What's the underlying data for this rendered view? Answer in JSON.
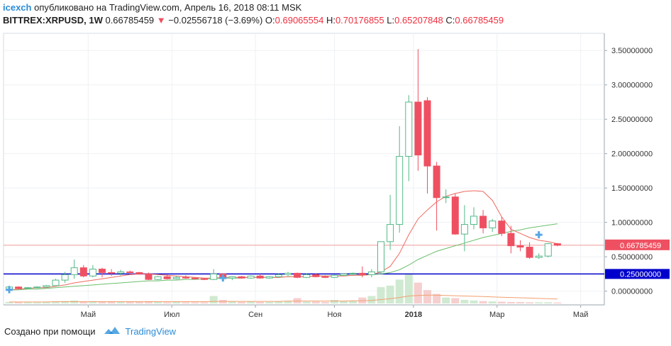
{
  "header": {
    "user": "icexch",
    "published": "опубликовано на TradingView.com, Апрель 16, 2018 08:11 MSK",
    "symbol": "BITTREX:XRPUSD, 1W",
    "last": "0.66785459",
    "arrow": "▼",
    "change": "−0.02556718 (−3.69%)",
    "o_label": "O:",
    "o_value": "0.69065554",
    "h_label": "H:",
    "h_value": "0.70176855",
    "l_label": "L:",
    "l_value": "0.65207848",
    "c_label": "C:",
    "c_value": "0.66785459"
  },
  "footer": {
    "created_with": "Создано при помощи",
    "brand": "TradingView",
    "logo_icon": "tradingview-cloud-icon"
  },
  "colors": {
    "up": "#ffffff",
    "up_border": "#53b987",
    "down": "#ef5061",
    "ma_fast": "#ef6a5f",
    "ma_slow": "#6cbf6c",
    "volume_up": "#c8e6c9",
    "volume_down": "#f4c7c7",
    "volume_ma": "#f0a070",
    "support_line": "#0000cc",
    "price_line": "#ef9a9a",
    "grid": "#eef1f4",
    "marker": "#56a7e3"
  },
  "chart_data": {
    "type": "candlestick",
    "y_axis_ticks": [
      "3.50000000",
      "3.00000000",
      "2.50000000",
      "2.00000000",
      "1.50000000",
      "1.00000000",
      "0.50000000",
      "0.00000000"
    ],
    "y_tick_values": [
      3.5,
      3.0,
      2.5,
      2.0,
      1.5,
      1.0,
      0.5,
      0.0
    ],
    "ylim": [
      -0.2,
      3.75
    ],
    "x_axis_ticks": [
      "Май",
      "Июл",
      "Сен",
      "Ноя",
      "2018",
      "Мар",
      "Май"
    ],
    "x_tick_weeks": [
      8.5,
      17.5,
      26.5,
      35,
      43.5,
      52.5,
      61.5
    ],
    "current_price_label": "0.66785459",
    "current_price": 0.66785459,
    "support_label": "0.25000000",
    "support_price": 0.25,
    "candles": [
      {
        "o": 0.02,
        "h": 0.08,
        "l": 0.005,
        "c": 0.06
      },
      {
        "o": 0.06,
        "h": 0.07,
        "l": 0.03,
        "c": 0.04
      },
      {
        "o": 0.04,
        "h": 0.06,
        "l": 0.03,
        "c": 0.05
      },
      {
        "o": 0.05,
        "h": 0.07,
        "l": 0.04,
        "c": 0.06
      },
      {
        "o": 0.06,
        "h": 0.09,
        "l": 0.05,
        "c": 0.08
      },
      {
        "o": 0.08,
        "h": 0.18,
        "l": 0.07,
        "c": 0.16
      },
      {
        "o": 0.16,
        "h": 0.28,
        "l": 0.12,
        "c": 0.24
      },
      {
        "o": 0.24,
        "h": 0.46,
        "l": 0.18,
        "c": 0.34
      },
      {
        "o": 0.34,
        "h": 0.38,
        "l": 0.2,
        "c": 0.22
      },
      {
        "o": 0.22,
        "h": 0.38,
        "l": 0.2,
        "c": 0.32
      },
      {
        "o": 0.32,
        "h": 0.34,
        "l": 0.2,
        "c": 0.27
      },
      {
        "o": 0.27,
        "h": 0.32,
        "l": 0.22,
        "c": 0.26
      },
      {
        "o": 0.26,
        "h": 0.31,
        "l": 0.23,
        "c": 0.28
      },
      {
        "o": 0.28,
        "h": 0.3,
        "l": 0.24,
        "c": 0.27
      },
      {
        "o": 0.27,
        "h": 0.28,
        "l": 0.24,
        "c": 0.25
      },
      {
        "o": 0.25,
        "h": 0.27,
        "l": 0.16,
        "c": 0.17
      },
      {
        "o": 0.17,
        "h": 0.22,
        "l": 0.16,
        "c": 0.21
      },
      {
        "o": 0.21,
        "h": 0.24,
        "l": 0.17,
        "c": 0.18
      },
      {
        "o": 0.18,
        "h": 0.22,
        "l": 0.17,
        "c": 0.2
      },
      {
        "o": 0.2,
        "h": 0.23,
        "l": 0.18,
        "c": 0.19
      },
      {
        "o": 0.19,
        "h": 0.2,
        "l": 0.17,
        "c": 0.18
      },
      {
        "o": 0.18,
        "h": 0.19,
        "l": 0.16,
        "c": 0.17
      },
      {
        "o": 0.17,
        "h": 0.32,
        "l": 0.16,
        "c": 0.25
      },
      {
        "o": 0.25,
        "h": 0.26,
        "l": 0.17,
        "c": 0.19
      },
      {
        "o": 0.19,
        "h": 0.22,
        "l": 0.16,
        "c": 0.21
      },
      {
        "o": 0.21,
        "h": 0.22,
        "l": 0.18,
        "c": 0.19
      },
      {
        "o": 0.19,
        "h": 0.23,
        "l": 0.18,
        "c": 0.22
      },
      {
        "o": 0.22,
        "h": 0.25,
        "l": 0.18,
        "c": 0.19
      },
      {
        "o": 0.19,
        "h": 0.22,
        "l": 0.18,
        "c": 0.21
      },
      {
        "o": 0.21,
        "h": 0.26,
        "l": 0.2,
        "c": 0.24
      },
      {
        "o": 0.24,
        "h": 0.28,
        "l": 0.22,
        "c": 0.26
      },
      {
        "o": 0.26,
        "h": 0.27,
        "l": 0.19,
        "c": 0.2
      },
      {
        "o": 0.2,
        "h": 0.26,
        "l": 0.19,
        "c": 0.24
      },
      {
        "o": 0.24,
        "h": 0.26,
        "l": 0.2,
        "c": 0.21
      },
      {
        "o": 0.21,
        "h": 0.23,
        "l": 0.19,
        "c": 0.2
      },
      {
        "o": 0.2,
        "h": 0.24,
        "l": 0.19,
        "c": 0.23
      },
      {
        "o": 0.23,
        "h": 0.26,
        "l": 0.22,
        "c": 0.25
      },
      {
        "o": 0.25,
        "h": 0.27,
        "l": 0.24,
        "c": 0.26
      },
      {
        "o": 0.26,
        "h": 0.36,
        "l": 0.2,
        "c": 0.24
      },
      {
        "o": 0.24,
        "h": 0.32,
        "l": 0.2,
        "c": 0.28
      },
      {
        "o": 0.28,
        "h": 0.72,
        "l": 0.26,
        "c": 0.72
      },
      {
        "o": 0.72,
        "h": 1.4,
        "l": 0.6,
        "c": 0.97
      },
      {
        "o": 0.97,
        "h": 2.4,
        "l": 0.85,
        "c": 1.96
      },
      {
        "o": 1.96,
        "h": 2.85,
        "l": 1.6,
        "c": 2.75
      },
      {
        "o": 2.75,
        "h": 3.52,
        "l": 1.75,
        "c": 1.98
      },
      {
        "o": 2.77,
        "h": 2.82,
        "l": 1.42,
        "c": 1.82
      },
      {
        "o": 1.82,
        "h": 1.88,
        "l": 0.88,
        "c": 1.36
      },
      {
        "o": 1.36,
        "h": 1.48,
        "l": 1.28,
        "c": 1.37
      },
      {
        "o": 1.37,
        "h": 1.42,
        "l": 0.82,
        "c": 0.83
      },
      {
        "o": 0.83,
        "h": 1.25,
        "l": 0.58,
        "c": 0.97
      },
      {
        "o": 0.97,
        "h": 1.22,
        "l": 0.9,
        "c": 1.09
      },
      {
        "o": 1.09,
        "h": 1.18,
        "l": 0.84,
        "c": 0.92
      },
      {
        "o": 0.92,
        "h": 1.05,
        "l": 0.86,
        "c": 1.02
      },
      {
        "o": 1.02,
        "h": 1.08,
        "l": 0.8,
        "c": 0.84
      },
      {
        "o": 0.84,
        "h": 0.95,
        "l": 0.55,
        "c": 0.66
      },
      {
        "o": 0.66,
        "h": 0.74,
        "l": 0.58,
        "c": 0.64
      },
      {
        "o": 0.64,
        "h": 0.71,
        "l": 0.47,
        "c": 0.49
      },
      {
        "o": 0.49,
        "h": 0.55,
        "l": 0.47,
        "c": 0.51
      },
      {
        "o": 0.51,
        "h": 0.7,
        "l": 0.49,
        "c": 0.69
      },
      {
        "o": 0.69,
        "h": 0.70176855,
        "l": 0.65207848,
        "c": 0.66785459
      }
    ],
    "ma_fast": [
      0.02,
      0.03,
      0.04,
      0.05,
      0.05,
      0.07,
      0.09,
      0.12,
      0.14,
      0.16,
      0.18,
      0.2,
      0.22,
      0.24,
      0.25,
      0.25,
      0.24,
      0.23,
      0.22,
      0.21,
      0.2,
      0.19,
      0.19,
      0.2,
      0.2,
      0.2,
      0.2,
      0.2,
      0.2,
      0.2,
      0.21,
      0.21,
      0.21,
      0.22,
      0.22,
      0.22,
      0.22,
      0.23,
      0.23,
      0.24,
      0.28,
      0.36,
      0.55,
      0.82,
      1.05,
      1.18,
      1.3,
      1.38,
      1.42,
      1.45,
      1.46,
      1.45,
      1.32,
      1.08,
      0.9,
      0.84,
      0.78,
      0.74,
      0.72,
      0.69
    ],
    "ma_slow": [
      0.02,
      0.02,
      0.03,
      0.03,
      0.04,
      0.05,
      0.06,
      0.07,
      0.08,
      0.09,
      0.1,
      0.11,
      0.12,
      0.13,
      0.14,
      0.15,
      0.15,
      0.16,
      0.16,
      0.17,
      0.17,
      0.18,
      0.18,
      0.19,
      0.19,
      0.19,
      0.2,
      0.2,
      0.2,
      0.2,
      0.21,
      0.21,
      0.21,
      0.22,
      0.22,
      0.22,
      0.23,
      0.23,
      0.23,
      0.24,
      0.25,
      0.27,
      0.31,
      0.38,
      0.46,
      0.52,
      0.58,
      0.62,
      0.66,
      0.7,
      0.74,
      0.78,
      0.81,
      0.84,
      0.87,
      0.89,
      0.92,
      0.94,
      0.96,
      0.98
    ],
    "volume": [
      0.05,
      0.05,
      0.04,
      0.04,
      0.05,
      0.07,
      0.08,
      0.1,
      0.07,
      0.08,
      0.06,
      0.05,
      0.05,
      0.05,
      0.05,
      0.08,
      0.05,
      0.04,
      0.05,
      0.04,
      0.04,
      0.04,
      0.25,
      0.12,
      0.08,
      0.05,
      0.06,
      0.05,
      0.05,
      0.07,
      0.08,
      0.18,
      0.06,
      0.06,
      0.05,
      0.12,
      0.08,
      0.1,
      0.2,
      0.25,
      0.55,
      0.6,
      0.8,
      1.0,
      0.7,
      0.45,
      0.32,
      0.2,
      0.18,
      0.12,
      0.1,
      0.08,
      0.07,
      0.06,
      0.05,
      0.05,
      0.04,
      0.04,
      0.04,
      0.03
    ],
    "volume_ma": [
      0.05,
      0.05,
      0.05,
      0.05,
      0.05,
      0.06,
      0.06,
      0.06,
      0.06,
      0.06,
      0.06,
      0.06,
      0.06,
      0.06,
      0.06,
      0.06,
      0.06,
      0.06,
      0.06,
      0.06,
      0.06,
      0.06,
      0.07,
      0.07,
      0.07,
      0.07,
      0.07,
      0.07,
      0.07,
      0.07,
      0.08,
      0.08,
      0.08,
      0.08,
      0.08,
      0.08,
      0.08,
      0.09,
      0.09,
      0.1,
      0.13,
      0.16,
      0.2,
      0.25,
      0.27,
      0.28,
      0.28,
      0.27,
      0.26,
      0.25,
      0.24,
      0.23,
      0.22,
      0.21,
      0.2,
      0.19,
      0.18,
      0.17,
      0.16,
      0.15
    ],
    "markers": [
      {
        "week": 0,
        "price": 0.02
      },
      {
        "week": 23,
        "price": 0.19
      },
      {
        "week": 57,
        "price": 0.82
      }
    ]
  }
}
